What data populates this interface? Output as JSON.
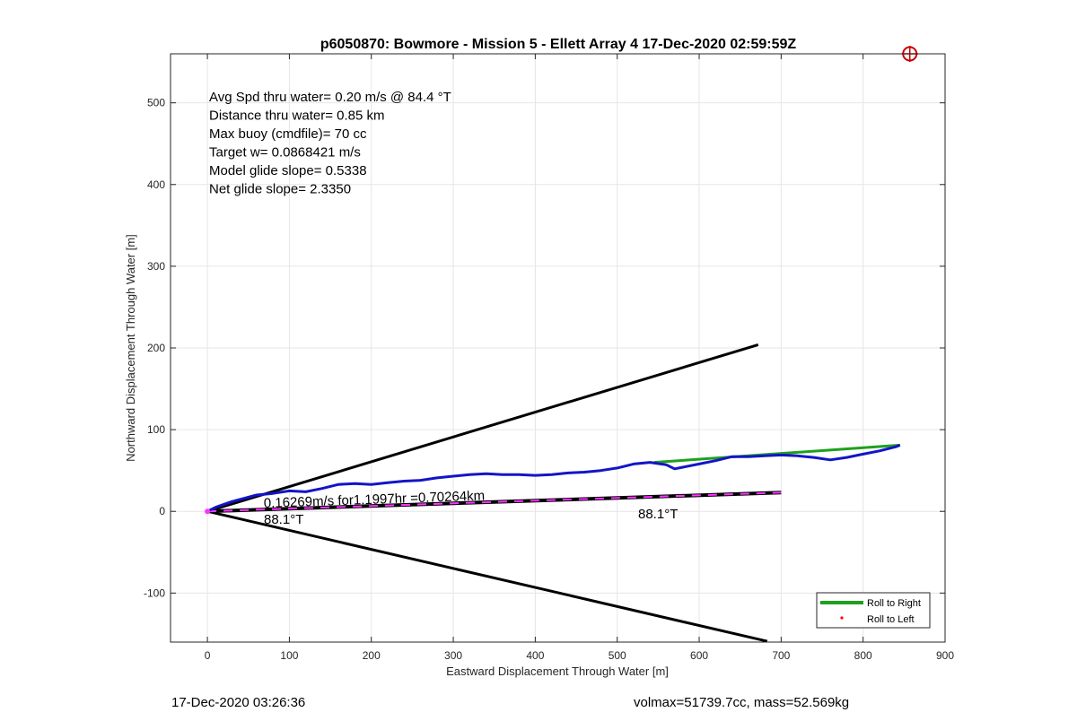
{
  "chart_data": {
    "type": "line",
    "title": "p6050870: Bowmore - Mission 5 - Ellett Array 4 17-Dec-2020 02:59:59Z",
    "xlabel": "Eastward Displacement Through Water [m]",
    "ylabel": "Northward Displacement Through Water [m]",
    "xlim": [
      -45,
      900
    ],
    "ylim": [
      -160,
      560
    ],
    "xticks": [
      0,
      100,
      200,
      300,
      400,
      500,
      600,
      700,
      800,
      900
    ],
    "yticks": [
      -100,
      0,
      100,
      200,
      300,
      400,
      500
    ],
    "grid": true,
    "legend_position": "bottom-right",
    "info_lines": [
      "Avg Spd thru water=  0.20 m/s @  84.4 °T",
      "Distance thru water=  0.85 km",
      "Max buoy (cmdfile)= 70 cc",
      "Target w= 0.0868421 m/s",
      "Model glide slope= 0.5338",
      "Net glide slope= 2.3350"
    ],
    "current_label": "0.16269m/s for1.1997hr =0.70264km",
    "heading_label_start": "88.1°T",
    "heading_label_end": "88.1°T",
    "colors": {
      "track": "#1414c8",
      "roll_right": "#1ea01e",
      "roll_left": "#ff0000",
      "cone": "#000000",
      "heading": "#000000",
      "heading_dash": "#ff33ff",
      "target": "#cc0000"
    },
    "series": [
      {
        "name": "Roll to Right",
        "x": [
          545,
          845
        ],
        "y": [
          60,
          81
        ]
      },
      {
        "name": "Roll to Left",
        "x": [],
        "y": []
      },
      {
        "x": [
          0,
          10,
          30,
          60,
          80,
          100,
          120,
          140,
          160,
          180,
          200,
          220,
          240,
          260,
          280,
          300,
          320,
          340,
          360,
          380,
          400,
          420,
          440,
          460,
          480,
          500,
          520,
          540,
          560,
          570,
          580,
          600,
          620,
          640,
          660,
          680,
          700,
          720,
          740,
          760,
          780,
          800,
          820,
          840,
          845
        ],
        "y": [
          0,
          5,
          12,
          20,
          22,
          25,
          24,
          28,
          33,
          34,
          33,
          35,
          37,
          38,
          41,
          43,
          45,
          46,
          45,
          45,
          44,
          45,
          47,
          48,
          50,
          53,
          58,
          60,
          57,
          52,
          54,
          58,
          62,
          67,
          67,
          68,
          69,
          68,
          66,
          63,
          66,
          70,
          74,
          79,
          81
        ]
      },
      {
        "x": [
          0,
          672
        ],
        "y": [
          0,
          204
        ]
      },
      {
        "x": [
          0,
          683
        ],
        "y": [
          0,
          -159
        ]
      },
      {
        "x": [
          0,
          700
        ],
        "y": [
          0,
          23
        ]
      }
    ],
    "target_marker": {
      "x": 857,
      "y": 560
    }
  },
  "footer": {
    "timestamp": "17-Dec-2020 03:26:36",
    "glider_info": "volmax=51739.7cc, mass=52.569kg"
  }
}
